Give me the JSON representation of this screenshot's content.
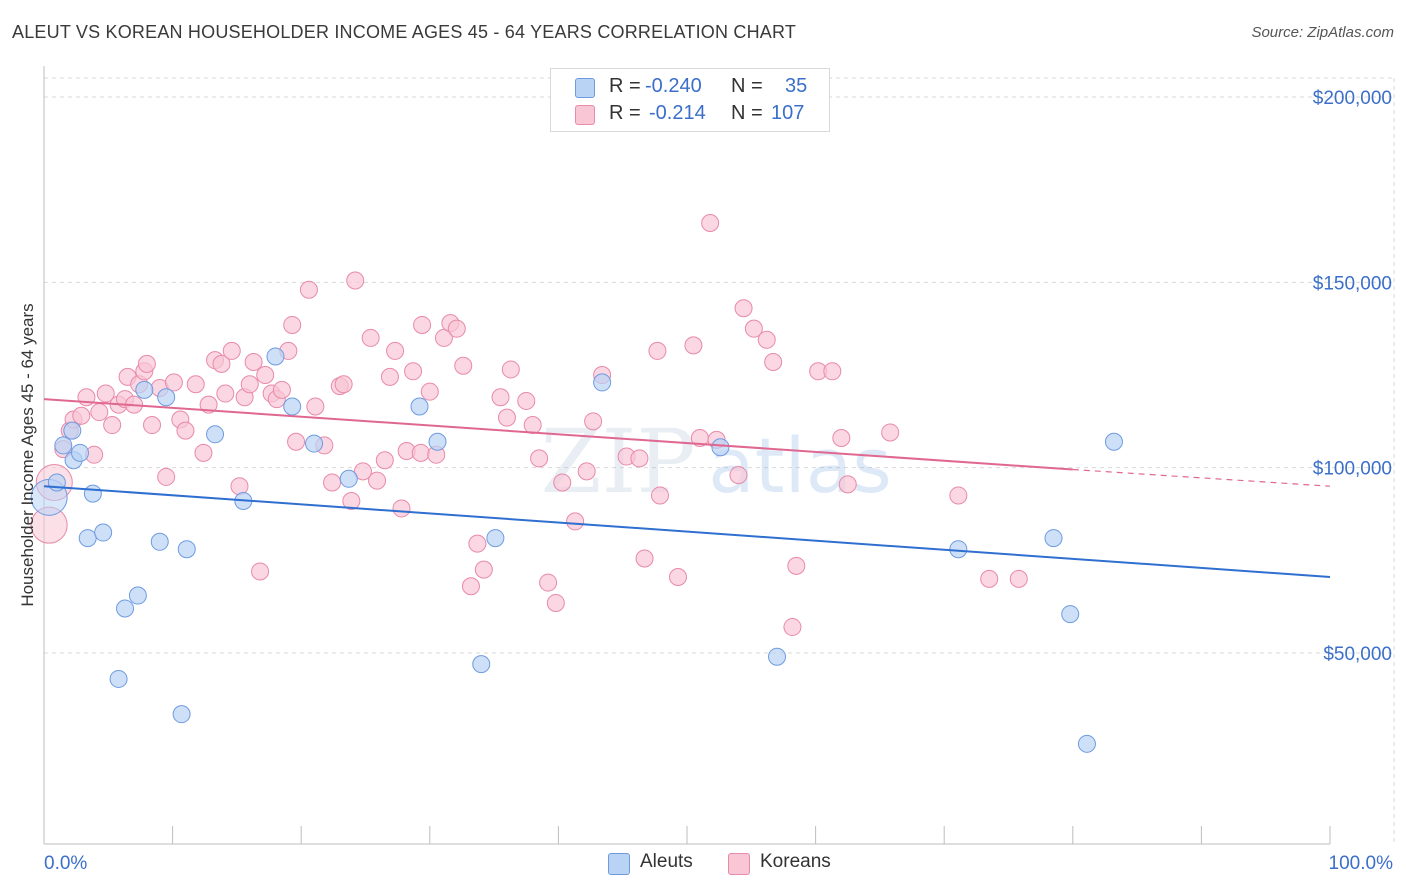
{
  "header": {
    "title": "ALEUT VS KOREAN HOUSEHOLDER INCOME AGES 45 - 64 YEARS CORRELATION CHART",
    "source": "Source: ZipAtlas.com"
  },
  "legend": {
    "rows": [
      {
        "r_label": "R =",
        "r_value": "-0.240",
        "n_label": "N =",
        "n_value": "35"
      },
      {
        "r_label": "R =",
        "r_value": "-0.214",
        "n_label": "N =",
        "n_value": "107"
      }
    ]
  },
  "bottom_legend": {
    "aleuts": "Aleuts",
    "koreans": "Koreans"
  },
  "watermark": {
    "zip": "ZIP",
    "atlas": "atlas"
  },
  "colors": {
    "aleut_fill": "#b9d3f5",
    "aleut_stroke": "#6e9be0",
    "aleut_line": "#2f6fd0",
    "korean_fill": "#f8c6d5",
    "korean_stroke": "#e88aa9",
    "korean_line": "#e06890",
    "axis_text": "#3b6fc9",
    "grid": "#d9d9d9"
  },
  "chart_data": {
    "type": "scatter",
    "title": "ALEUT VS KOREAN HOUSEHOLDER INCOME AGES 45 - 64 YEARS CORRELATION CHART",
    "xlabel": "",
    "ylabel": "Householder Income Ages 45 - 64 years",
    "xlim": [
      0,
      100
    ],
    "ylim": [
      0,
      210000
    ],
    "x_tick_labels": [
      "0.0%",
      "100.0%"
    ],
    "y_ticks": [
      50000,
      100000,
      150000,
      200000
    ],
    "y_tick_labels": [
      "$50,000",
      "$100,000",
      "$150,000",
      "$200,000"
    ],
    "grid": true,
    "legend_position": "top-center",
    "series": [
      {
        "name": "Aleuts",
        "R": -0.24,
        "N": 35,
        "trend": {
          "x": [
            0,
            100
          ],
          "y": [
            95000,
            70500
          ]
        },
        "points": [
          {
            "x": 0.4,
            "y": 92000,
            "big": true
          },
          {
            "x": 1.0,
            "y": 96000
          },
          {
            "x": 1.5,
            "y": 106000
          },
          {
            "x": 2.2,
            "y": 110000
          },
          {
            "x": 2.3,
            "y": 102000
          },
          {
            "x": 2.8,
            "y": 104000
          },
          {
            "x": 3.4,
            "y": 81000
          },
          {
            "x": 3.8,
            "y": 93000
          },
          {
            "x": 4.6,
            "y": 82500
          },
          {
            "x": 5.8,
            "y": 43000
          },
          {
            "x": 6.3,
            "y": 62000
          },
          {
            "x": 7.3,
            "y": 65500
          },
          {
            "x": 7.8,
            "y": 121000
          },
          {
            "x": 9.0,
            "y": 80000
          },
          {
            "x": 9.5,
            "y": 119000
          },
          {
            "x": 10.7,
            "y": 33500
          },
          {
            "x": 11.1,
            "y": 78000
          },
          {
            "x": 13.3,
            "y": 109000
          },
          {
            "x": 15.5,
            "y": 91000
          },
          {
            "x": 18.0,
            "y": 130000
          },
          {
            "x": 19.3,
            "y": 116500
          },
          {
            "x": 21.0,
            "y": 106500
          },
          {
            "x": 23.7,
            "y": 97000
          },
          {
            "x": 29.2,
            "y": 116500
          },
          {
            "x": 30.6,
            "y": 107000
          },
          {
            "x": 34.0,
            "y": 47000
          },
          {
            "x": 35.1,
            "y": 81000
          },
          {
            "x": 43.4,
            "y": 123000
          },
          {
            "x": 52.6,
            "y": 105500
          },
          {
            "x": 57.0,
            "y": 49000
          },
          {
            "x": 71.1,
            "y": 78000
          },
          {
            "x": 78.5,
            "y": 81000
          },
          {
            "x": 79.8,
            "y": 60500
          },
          {
            "x": 81.1,
            "y": 25500
          },
          {
            "x": 83.2,
            "y": 107000
          }
        ]
      },
      {
        "name": "Koreans",
        "R": -0.214,
        "N": 107,
        "trend": {
          "x": [
            0,
            80
          ],
          "y": [
            118500,
            99500
          ],
          "dashed_to": {
            "x": 100,
            "y": 95000
          }
        },
        "points": [
          {
            "x": 0.4,
            "y": 84500,
            "big": true
          },
          {
            "x": 0.8,
            "y": 96000,
            "big": true
          },
          {
            "x": 1.5,
            "y": 105000
          },
          {
            "x": 2.0,
            "y": 110000
          },
          {
            "x": 2.3,
            "y": 113000
          },
          {
            "x": 2.9,
            "y": 114000
          },
          {
            "x": 3.3,
            "y": 119000
          },
          {
            "x": 3.9,
            "y": 103500
          },
          {
            "x": 4.3,
            "y": 115000
          },
          {
            "x": 4.8,
            "y": 120000
          },
          {
            "x": 5.3,
            "y": 111500
          },
          {
            "x": 5.8,
            "y": 117000
          },
          {
            "x": 6.3,
            "y": 118500
          },
          {
            "x": 6.5,
            "y": 124500
          },
          {
            "x": 7.0,
            "y": 117000
          },
          {
            "x": 7.4,
            "y": 122500
          },
          {
            "x": 7.8,
            "y": 126000
          },
          {
            "x": 8.0,
            "y": 128000
          },
          {
            "x": 8.4,
            "y": 111500
          },
          {
            "x": 9.0,
            "y": 121500
          },
          {
            "x": 9.5,
            "y": 97500
          },
          {
            "x": 10.1,
            "y": 123000
          },
          {
            "x": 10.6,
            "y": 113000
          },
          {
            "x": 11.0,
            "y": 110000
          },
          {
            "x": 11.8,
            "y": 122500
          },
          {
            "x": 12.4,
            "y": 104000
          },
          {
            "x": 12.8,
            "y": 117000
          },
          {
            "x": 13.3,
            "y": 129000
          },
          {
            "x": 13.8,
            "y": 128000
          },
          {
            "x": 14.1,
            "y": 120000
          },
          {
            "x": 14.6,
            "y": 131500
          },
          {
            "x": 15.2,
            "y": 95000
          },
          {
            "x": 15.6,
            "y": 119000
          },
          {
            "x": 16.0,
            "y": 122500
          },
          {
            "x": 16.3,
            "y": 128500
          },
          {
            "x": 16.8,
            "y": 72000
          },
          {
            "x": 17.2,
            "y": 125000
          },
          {
            "x": 17.7,
            "y": 120000
          },
          {
            "x": 18.1,
            "y": 118500
          },
          {
            "x": 18.5,
            "y": 121000
          },
          {
            "x": 19.0,
            "y": 131500
          },
          {
            "x": 19.3,
            "y": 138500
          },
          {
            "x": 19.6,
            "y": 107000
          },
          {
            "x": 20.6,
            "y": 148000
          },
          {
            "x": 21.1,
            "y": 116500
          },
          {
            "x": 21.8,
            "y": 106000
          },
          {
            "x": 22.4,
            "y": 96000
          },
          {
            "x": 23.0,
            "y": 122000
          },
          {
            "x": 23.3,
            "y": 122500
          },
          {
            "x": 23.9,
            "y": 91000
          },
          {
            "x": 24.2,
            "y": 150500
          },
          {
            "x": 24.8,
            "y": 99000
          },
          {
            "x": 25.4,
            "y": 135000
          },
          {
            "x": 25.9,
            "y": 96500
          },
          {
            "x": 26.5,
            "y": 102000
          },
          {
            "x": 26.9,
            "y": 124500
          },
          {
            "x": 27.3,
            "y": 131500
          },
          {
            "x": 27.8,
            "y": 89000
          },
          {
            "x": 28.2,
            "y": 104500
          },
          {
            "x": 28.7,
            "y": 126000
          },
          {
            "x": 29.3,
            "y": 104000
          },
          {
            "x": 29.4,
            "y": 138500
          },
          {
            "x": 30.0,
            "y": 120500
          },
          {
            "x": 30.5,
            "y": 103500
          },
          {
            "x": 31.1,
            "y": 135000
          },
          {
            "x": 31.6,
            "y": 139000
          },
          {
            "x": 32.1,
            "y": 137500
          },
          {
            "x": 32.6,
            "y": 127500
          },
          {
            "x": 33.2,
            "y": 68000
          },
          {
            "x": 33.7,
            "y": 79500
          },
          {
            "x": 34.2,
            "y": 72500
          },
          {
            "x": 35.5,
            "y": 119000
          },
          {
            "x": 36.0,
            "y": 113500
          },
          {
            "x": 36.3,
            "y": 126500
          },
          {
            "x": 37.5,
            "y": 118000
          },
          {
            "x": 38.0,
            "y": 111500
          },
          {
            "x": 38.5,
            "y": 102500
          },
          {
            "x": 39.2,
            "y": 69000
          },
          {
            "x": 39.8,
            "y": 63500
          },
          {
            "x": 40.3,
            "y": 96000
          },
          {
            "x": 41.3,
            "y": 85500
          },
          {
            "x": 42.2,
            "y": 99000
          },
          {
            "x": 42.7,
            "y": 112500
          },
          {
            "x": 43.4,
            "y": 125000
          },
          {
            "x": 45.3,
            "y": 103000
          },
          {
            "x": 46.3,
            "y": 102500
          },
          {
            "x": 46.7,
            "y": 75500
          },
          {
            "x": 47.7,
            "y": 131500
          },
          {
            "x": 47.9,
            "y": 92500
          },
          {
            "x": 49.3,
            "y": 70500
          },
          {
            "x": 50.5,
            "y": 133000
          },
          {
            "x": 51.0,
            "y": 108000
          },
          {
            "x": 51.8,
            "y": 166000
          },
          {
            "x": 52.3,
            "y": 107500
          },
          {
            "x": 54.0,
            "y": 98000
          },
          {
            "x": 54.4,
            "y": 143000
          },
          {
            "x": 55.2,
            "y": 137500
          },
          {
            "x": 56.2,
            "y": 134500
          },
          {
            "x": 56.7,
            "y": 128500
          },
          {
            "x": 58.2,
            "y": 57000
          },
          {
            "x": 58.5,
            "y": 73500
          },
          {
            "x": 60.2,
            "y": 126000
          },
          {
            "x": 61.3,
            "y": 126000
          },
          {
            "x": 62.0,
            "y": 108000
          },
          {
            "x": 62.5,
            "y": 95500
          },
          {
            "x": 65.8,
            "y": 109500
          },
          {
            "x": 71.1,
            "y": 92500
          },
          {
            "x": 73.5,
            "y": 70000
          },
          {
            "x": 75.8,
            "y": 70000
          }
        ]
      }
    ]
  }
}
